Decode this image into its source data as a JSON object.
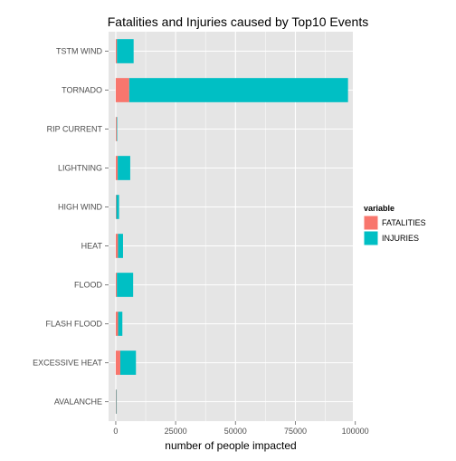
{
  "chart_data": {
    "type": "bar",
    "orientation": "horizontal",
    "stacked": true,
    "title": "Fatalities and Injuries caused by Top10 Events",
    "xlabel": "number of people impacted",
    "ylabel": "",
    "categories": [
      "AVALANCHE",
      "EXCESSIVE HEAT",
      "FLASH FLOOD",
      "FLOOD",
      "HEAT",
      "HIGH WIND",
      "LIGHTNING",
      "RIP CURRENT",
      "TORNADO",
      "TSTM WIND"
    ],
    "series": [
      {
        "name": "FATALITIES",
        "color": "#F8766D",
        "values": [
          224,
          1903,
          978,
          470,
          937,
          248,
          816,
          368,
          5633,
          504
        ]
      },
      {
        "name": "INJURIES",
        "color": "#00BFC4",
        "values": [
          170,
          6525,
          1777,
          6789,
          2100,
          1137,
          5230,
          232,
          91346,
          6957
        ]
      }
    ],
    "xlim": [
      -3000,
      99000
    ],
    "xticks": [
      0,
      25000,
      50000,
      75000,
      100000
    ],
    "xtick_labels": [
      "0",
      "25000",
      "50000",
      "75000",
      "100000"
    ],
    "legend": {
      "title": "variable",
      "position": "right"
    },
    "grid": true,
    "panel_background": "#E5E5E5",
    "grid_color": "#FFFFFF"
  }
}
